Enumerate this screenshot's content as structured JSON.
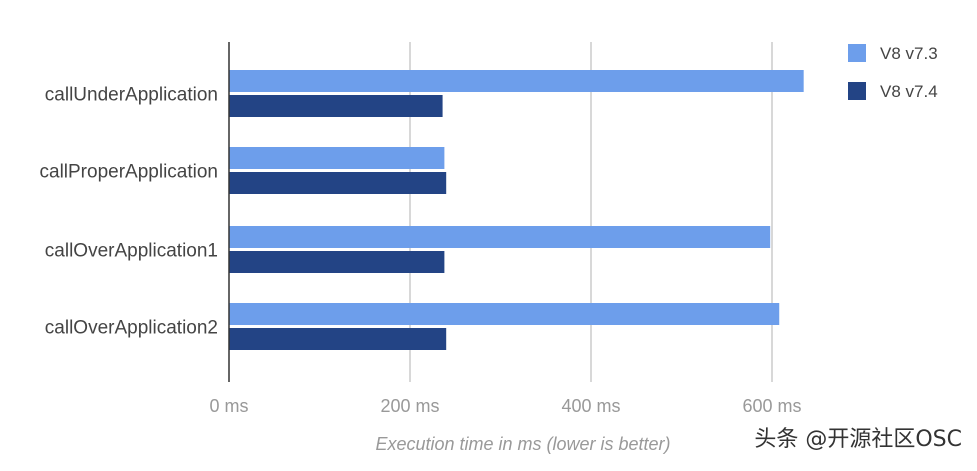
{
  "chart_data": {
    "type": "bar",
    "orientation": "horizontal",
    "categories": [
      "callUnderApplication",
      "callProperApplication",
      "callOverApplication1",
      "callOverApplication2"
    ],
    "series": [
      {
        "name": "V8 v7.3",
        "values": [
          635,
          238,
          598,
          608
        ]
      },
      {
        "name": "V8 v7.4",
        "values": [
          236,
          240,
          238,
          240
        ]
      }
    ],
    "xlim": [
      0,
      700
    ],
    "ticks": [
      {
        "value": 0,
        "label": "0 ms"
      },
      {
        "value": 200,
        "label": "200 ms"
      },
      {
        "value": 400,
        "label": "400 ms"
      },
      {
        "value": 600,
        "label": "600 ms"
      }
    ],
    "xlabel": "Execution time in ms (lower is better)",
    "ylabel": "",
    "title": "",
    "grid": true,
    "legend_position": "top-right",
    "colors": [
      "#6d9eeb",
      "#234485"
    ]
  },
  "watermark": "头条 @开源社区OSC"
}
